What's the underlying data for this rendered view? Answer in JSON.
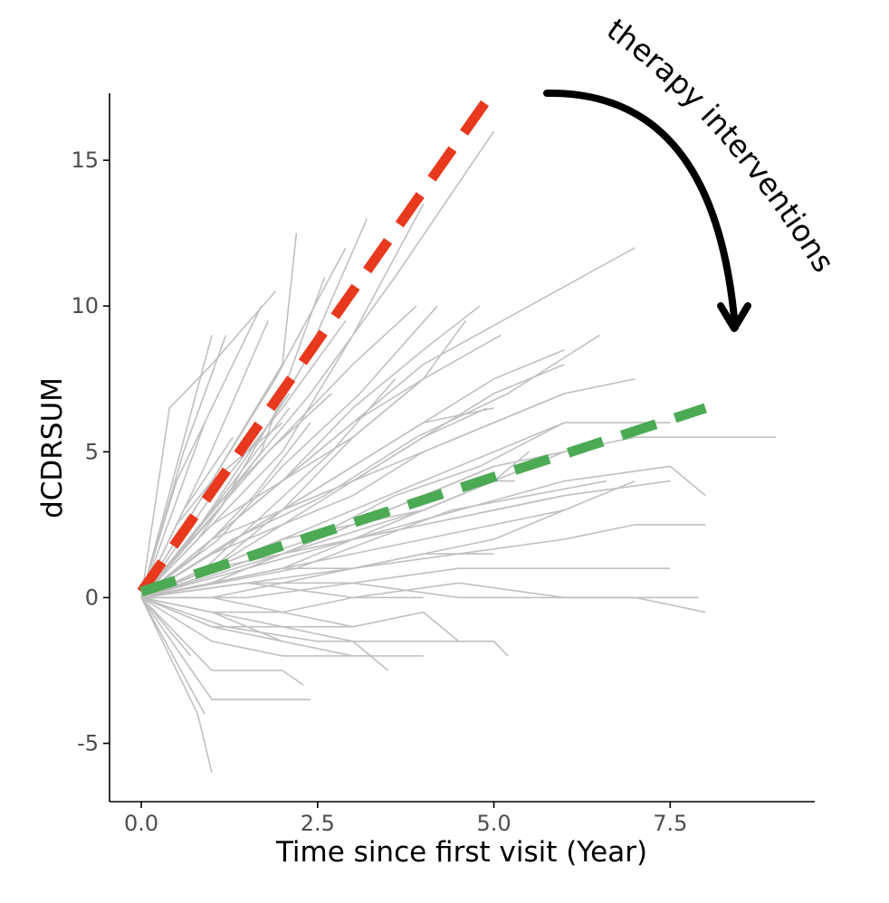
{
  "chart_data": {
    "type": "line",
    "title": "",
    "xlabel": "Time since first visit (Year)",
    "ylabel": "dCDRSUM",
    "xlim": [
      -0.45,
      9.55
    ],
    "ylim": [
      -7,
      17.3
    ],
    "x_ticks": [
      {
        "value": 0,
        "label": "0.0"
      },
      {
        "value": 2.5,
        "label": "2.5"
      },
      {
        "value": 5,
        "label": "5.0"
      },
      {
        "value": 7.5,
        "label": "7.5"
      }
    ],
    "y_ticks": [
      {
        "value": -5,
        "label": "-5"
      },
      {
        "value": 0,
        "label": "0"
      },
      {
        "value": 5,
        "label": "5"
      },
      {
        "value": 10,
        "label": "10"
      },
      {
        "value": 15,
        "label": "15"
      }
    ],
    "grid": false,
    "legend": "none",
    "colors": {
      "trajectory": "#c0c0c0",
      "untreated_trend": "#e8391e",
      "treated_trend": "#4caa55",
      "annotation": "#000000",
      "axis": "#000000",
      "tick_label": "#4d4d4d"
    },
    "series": [
      {
        "style": "dashed",
        "color": "#e8391e",
        "x": [
          0,
          5.0
        ],
        "y": [
          0.2,
          17.4
        ]
      },
      {
        "style": "dashed",
        "color": "#4caa55",
        "x": [
          0,
          8.0
        ],
        "y": [
          0.2,
          6.5
        ]
      }
    ],
    "trajectories": [
      {
        "x": [
          0,
          0.5,
          1.0,
          2.0
        ],
        "y": [
          0,
          2.5,
          4.0,
          6.0
        ]
      },
      {
        "x": [
          0,
          0.9,
          1.8
        ],
        "y": [
          0,
          4.5,
          9.5
        ]
      },
      {
        "x": [
          0,
          1.0,
          2.1
        ],
        "y": [
          0,
          3.0,
          6.5
        ]
      },
      {
        "x": [
          0,
          0.8,
          1.7,
          2.6
        ],
        "y": [
          0,
          2.0,
          5.0,
          11.0
        ]
      },
      {
        "x": [
          0,
          1.1,
          2.3,
          3.2
        ],
        "y": [
          0,
          3.0,
          8.0,
          13.0
        ]
      },
      {
        "x": [
          0,
          1.0,
          2.0,
          3.0,
          4.0
        ],
        "y": [
          0,
          2.5,
          5.0,
          9.0,
          13.5
        ]
      },
      {
        "x": [
          0,
          1.2,
          2.4,
          3.6,
          5.0
        ],
        "y": [
          0,
          3.5,
          7.0,
          11.0,
          16.0
        ]
      },
      {
        "x": [
          0,
          0.6,
          1.2
        ],
        "y": [
          0,
          5.0,
          9.0
        ]
      },
      {
        "x": [
          0,
          1.0
        ],
        "y": [
          0,
          9.0
        ]
      },
      {
        "x": [
          0,
          0.9
        ],
        "y": [
          0,
          6.0
        ]
      },
      {
        "x": [
          0,
          0.4,
          1.0,
          1.9
        ],
        "y": [
          0,
          6.5,
          8.0,
          10.5
        ]
      },
      {
        "x": [
          0,
          1.0,
          1.9,
          2.9
        ],
        "y": [
          0,
          4.0,
          7.5,
          12.0
        ]
      },
      {
        "x": [
          0,
          1.1,
          2.0,
          3.1,
          4.2
        ],
        "y": [
          0,
          2.0,
          4.5,
          7.0,
          10.0
        ]
      },
      {
        "x": [
          0,
          1.0,
          2.0,
          3.0,
          4.0,
          5.1
        ],
        "y": [
          0,
          1.5,
          3.0,
          5.5,
          7.5,
          9.0
        ]
      },
      {
        "x": [
          0,
          1.3,
          2.6,
          3.9,
          5.2,
          6.5
        ],
        "y": [
          0,
          2.0,
          3.5,
          5.5,
          7.0,
          9.0
        ]
      },
      {
        "x": [
          0,
          1.0,
          2.0,
          3.0,
          4.0,
          5.5,
          7.0
        ],
        "y": [
          0,
          2.0,
          4.0,
          6.0,
          8.0,
          10.0,
          12.0
        ]
      },
      {
        "x": [
          0,
          1.0,
          2.0,
          3.0,
          4.5,
          6.0,
          7.0
        ],
        "y": [
          0,
          1.5,
          3.0,
          4.0,
          5.5,
          7.0,
          7.5
        ]
      },
      {
        "x": [
          0,
          1.5,
          3.0,
          4.5,
          6.0,
          7.5
        ],
        "y": [
          0,
          1.5,
          3.0,
          4.5,
          6.0,
          6.0
        ]
      },
      {
        "x": [
          0,
          2.0,
          4.0,
          6.0,
          7.0,
          8.0,
          9.0
        ],
        "y": [
          0,
          1.5,
          3.0,
          5.0,
          5.5,
          5.5,
          5.5
        ]
      },
      {
        "x": [
          0,
          1.5,
          3.0,
          4.5,
          6.0,
          7.5,
          8.0
        ],
        "y": [
          0,
          1.0,
          2.0,
          3.0,
          4.0,
          4.5,
          3.5
        ]
      },
      {
        "x": [
          0,
          1.5,
          3.0,
          4.5,
          6.0,
          7.0,
          8.0
        ],
        "y": [
          0,
          0.5,
          1.0,
          1.5,
          2.0,
          2.5,
          2.5
        ]
      },
      {
        "x": [
          0,
          1.5,
          3.0,
          4.5,
          6.0,
          7.5
        ],
        "y": [
          0,
          0.5,
          0.5,
          1.0,
          1.0,
          1.0
        ]
      },
      {
        "x": [
          0,
          1.5,
          3.0,
          4.5,
          6.0,
          7.0,
          8.0
        ],
        "y": [
          0,
          0.0,
          0.5,
          0.0,
          0.0,
          0.0,
          -0.5
        ]
      },
      {
        "x": [
          0,
          1.5,
          3.0,
          4.5,
          6.0,
          7.0,
          7.9
        ],
        "y": [
          0,
          0.5,
          0.0,
          0.5,
          0.0,
          0.0,
          0.0
        ]
      },
      {
        "x": [
          0,
          1.2,
          2.5,
          3.8,
          5.0,
          5.2
        ],
        "y": [
          0,
          -1.0,
          -1.5,
          -1.5,
          -1.5,
          -2.0
        ]
      },
      {
        "x": [
          0,
          1.0,
          2.0,
          3.0,
          4.0
        ],
        "y": [
          0,
          -1.0,
          -1.5,
          -2.0,
          -2.0
        ]
      },
      {
        "x": [
          0,
          1.0,
          2.0,
          3.0,
          3.5
        ],
        "y": [
          0,
          -0.5,
          -1.0,
          -1.5,
          -2.5
        ]
      },
      {
        "x": [
          0,
          1.0,
          2.4
        ],
        "y": [
          0,
          -3.5,
          -3.5
        ]
      },
      {
        "x": [
          0,
          0.8,
          1.0
        ],
        "y": [
          0,
          -4.0,
          -6.0
        ]
      },
      {
        "x": [
          0,
          0.9
        ],
        "y": [
          0,
          -4.0
        ]
      },
      {
        "x": [
          0,
          1.0,
          2.0,
          2.3
        ],
        "y": [
          0,
          -2.5,
          -2.5,
          -3.0
        ]
      },
      {
        "x": [
          0,
          1.0,
          2.0,
          3.0
        ],
        "y": [
          0,
          -1.5,
          -2.0,
          -2.0
        ]
      },
      {
        "x": [
          0,
          0.7
        ],
        "y": [
          0,
          -2.0
        ]
      },
      {
        "x": [
          0,
          1.0,
          2.0
        ],
        "y": [
          0,
          -0.5,
          -1.5
        ]
      },
      {
        "x": [
          0,
          1.0,
          2.0,
          3.0,
          4.0,
          5.0,
          5.5
        ],
        "y": [
          0,
          0.5,
          1.0,
          2.0,
          3.0,
          4.0,
          5.0
        ]
      },
      {
        "x": [
          0,
          1.0,
          2.0,
          3.0,
          4.0,
          5.0,
          5.3
        ],
        "y": [
          0,
          0.5,
          1.5,
          2.5,
          3.0,
          4.0,
          4.0
        ]
      },
      {
        "x": [
          0,
          1.0,
          2.0,
          3.0,
          4.0,
          5.0,
          6.0
        ],
        "y": [
          0,
          1.0,
          1.5,
          2.0,
          2.5,
          3.0,
          3.5
        ]
      },
      {
        "x": [
          0,
          1.0,
          2.0,
          3.0,
          4.0,
          5.0,
          6.0,
          7.0
        ],
        "y": [
          0,
          0.5,
          1.0,
          1.5,
          2.0,
          2.5,
          3.0,
          4.0
        ]
      },
      {
        "x": [
          0,
          1.0,
          2.0,
          3.0,
          4.0,
          5.0,
          6.0
        ],
        "y": [
          0,
          0.5,
          1.0,
          1.0,
          1.5,
          2.0,
          3.0
        ]
      },
      {
        "x": [
          0,
          1.0,
          2.0,
          3.0,
          4.0,
          5.0
        ],
        "y": [
          0,
          1.0,
          2.0,
          2.5,
          3.5,
          4.5
        ]
      },
      {
        "x": [
          0,
          1.0,
          2.0,
          3.0,
          4.0,
          4.9
        ],
        "y": [
          0,
          2.0,
          3.0,
          4.0,
          5.5,
          6.5
        ]
      },
      {
        "x": [
          0,
          1.0,
          2.0,
          3.0,
          4.0,
          5.0,
          6.0
        ],
        "y": [
          0,
          1.5,
          2.5,
          4.0,
          5.5,
          7.0,
          8.0
        ]
      },
      {
        "x": [
          0,
          1.0,
          2.0,
          3.0,
          4.0,
          4.6
        ],
        "y": [
          0,
          2.5,
          4.0,
          5.5,
          7.5,
          9.5
        ]
      },
      {
        "x": [
          0,
          1.0,
          2.0,
          3.0,
          4.0,
          5.0,
          6.0
        ],
        "y": [
          0,
          1.5,
          3.0,
          4.5,
          6.0,
          7.5,
          8.5
        ]
      },
      {
        "x": [
          0,
          1.0,
          2.0,
          3.0,
          3.9
        ],
        "y": [
          0,
          3.0,
          5.5,
          8.0,
          10.0
        ]
      },
      {
        "x": [
          0,
          1.0,
          2.0,
          2.9
        ],
        "y": [
          0,
          3.5,
          6.5,
          9.5
        ]
      },
      {
        "x": [
          0,
          1.0,
          2.0,
          2.2
        ],
        "y": [
          0,
          4.0,
          8.0,
          12.5
        ]
      },
      {
        "x": [
          0,
          0.9,
          1.8,
          2.7
        ],
        "y": [
          0,
          2.5,
          5.0,
          7.0
        ]
      },
      {
        "x": [
          0,
          1.0,
          2.0,
          3.0,
          4.0
        ],
        "y": [
          0,
          2.0,
          4.0,
          6.0,
          7.5
        ]
      },
      {
        "x": [
          0,
          1.0,
          2.0,
          3.0,
          4.0,
          5.0
        ],
        "y": [
          0,
          1.0,
          3.0,
          4.5,
          6.0,
          6.5
        ]
      },
      {
        "x": [
          0,
          1.0,
          2.0,
          3.0,
          4.0,
          5.0,
          6.0
        ],
        "y": [
          0,
          1.0,
          2.0,
          2.5,
          3.5,
          4.5,
          5.0
        ]
      },
      {
        "x": [
          0,
          1.0,
          2.0,
          3.0,
          4.0,
          5.0,
          6.0,
          7.5
        ],
        "y": [
          0,
          0.5,
          1.5,
          2.0,
          2.5,
          3.0,
          3.5,
          4.0
        ]
      },
      {
        "x": [
          0,
          1.0,
          2.0,
          3.0,
          4.0,
          5.0
        ],
        "y": [
          0,
          0.0,
          0.5,
          1.0,
          1.5,
          1.5
        ]
      },
      {
        "x": [
          0,
          1.0,
          2.0,
          3.0,
          4.0
        ],
        "y": [
          0,
          -0.5,
          -0.5,
          0.0,
          0.0
        ]
      },
      {
        "x": [
          0,
          1.0,
          2.0,
          3.0
        ],
        "y": [
          0,
          0.0,
          -0.5,
          -1.0
        ]
      },
      {
        "x": [
          0,
          1.0,
          2.0,
          3.0,
          4.0,
          4.5
        ],
        "y": [
          0,
          -1.0,
          -1.0,
          -1.0,
          -0.5,
          -1.5
        ]
      },
      {
        "x": [
          0,
          0.8,
          1.6,
          2.4
        ],
        "y": [
          0,
          1.5,
          3.5,
          6.0
        ]
      },
      {
        "x": [
          0,
          0.7,
          1.4,
          2.1
        ],
        "y": [
          0,
          2.0,
          4.5,
          7.0
        ]
      },
      {
        "x": [
          0,
          0.9,
          1.8,
          2.7,
          3.6
        ],
        "y": [
          0,
          1.0,
          3.0,
          5.0,
          7.5
        ]
      },
      {
        "x": [
          0,
          1.2,
          2.4,
          3.6,
          4.8,
          6.0
        ],
        "y": [
          0,
          1.0,
          2.0,
          3.5,
          4.5,
          6.0
        ]
      },
      {
        "x": [
          0,
          1.1,
          2.2,
          3.3,
          4.4,
          5.5,
          6.6
        ],
        "y": [
          0,
          0.5,
          1.0,
          2.0,
          3.0,
          3.5,
          4.0
        ]
      },
      {
        "x": [
          0,
          0.6,
          1.3
        ],
        "y": [
          0,
          3.0,
          5.5
        ]
      },
      {
        "x": [
          0,
          0.5,
          1.1,
          1.7
        ],
        "y": [
          0,
          4.0,
          7.0,
          10.0
        ]
      },
      {
        "x": [
          0,
          1.0,
          2.0,
          3.0,
          4.0,
          4.8
        ],
        "y": [
          0,
          2.0,
          4.0,
          6.5,
          8.5,
          10.0
        ]
      },
      {
        "x": [
          0,
          1.0,
          2.0,
          3.0,
          4.0,
          5.0,
          6.0
        ],
        "y": [
          0,
          1.0,
          2.5,
          3.5,
          5.0,
          6.0,
          7.0
        ]
      }
    ],
    "annotations": [
      {
        "text": "therapy interventions"
      }
    ]
  }
}
